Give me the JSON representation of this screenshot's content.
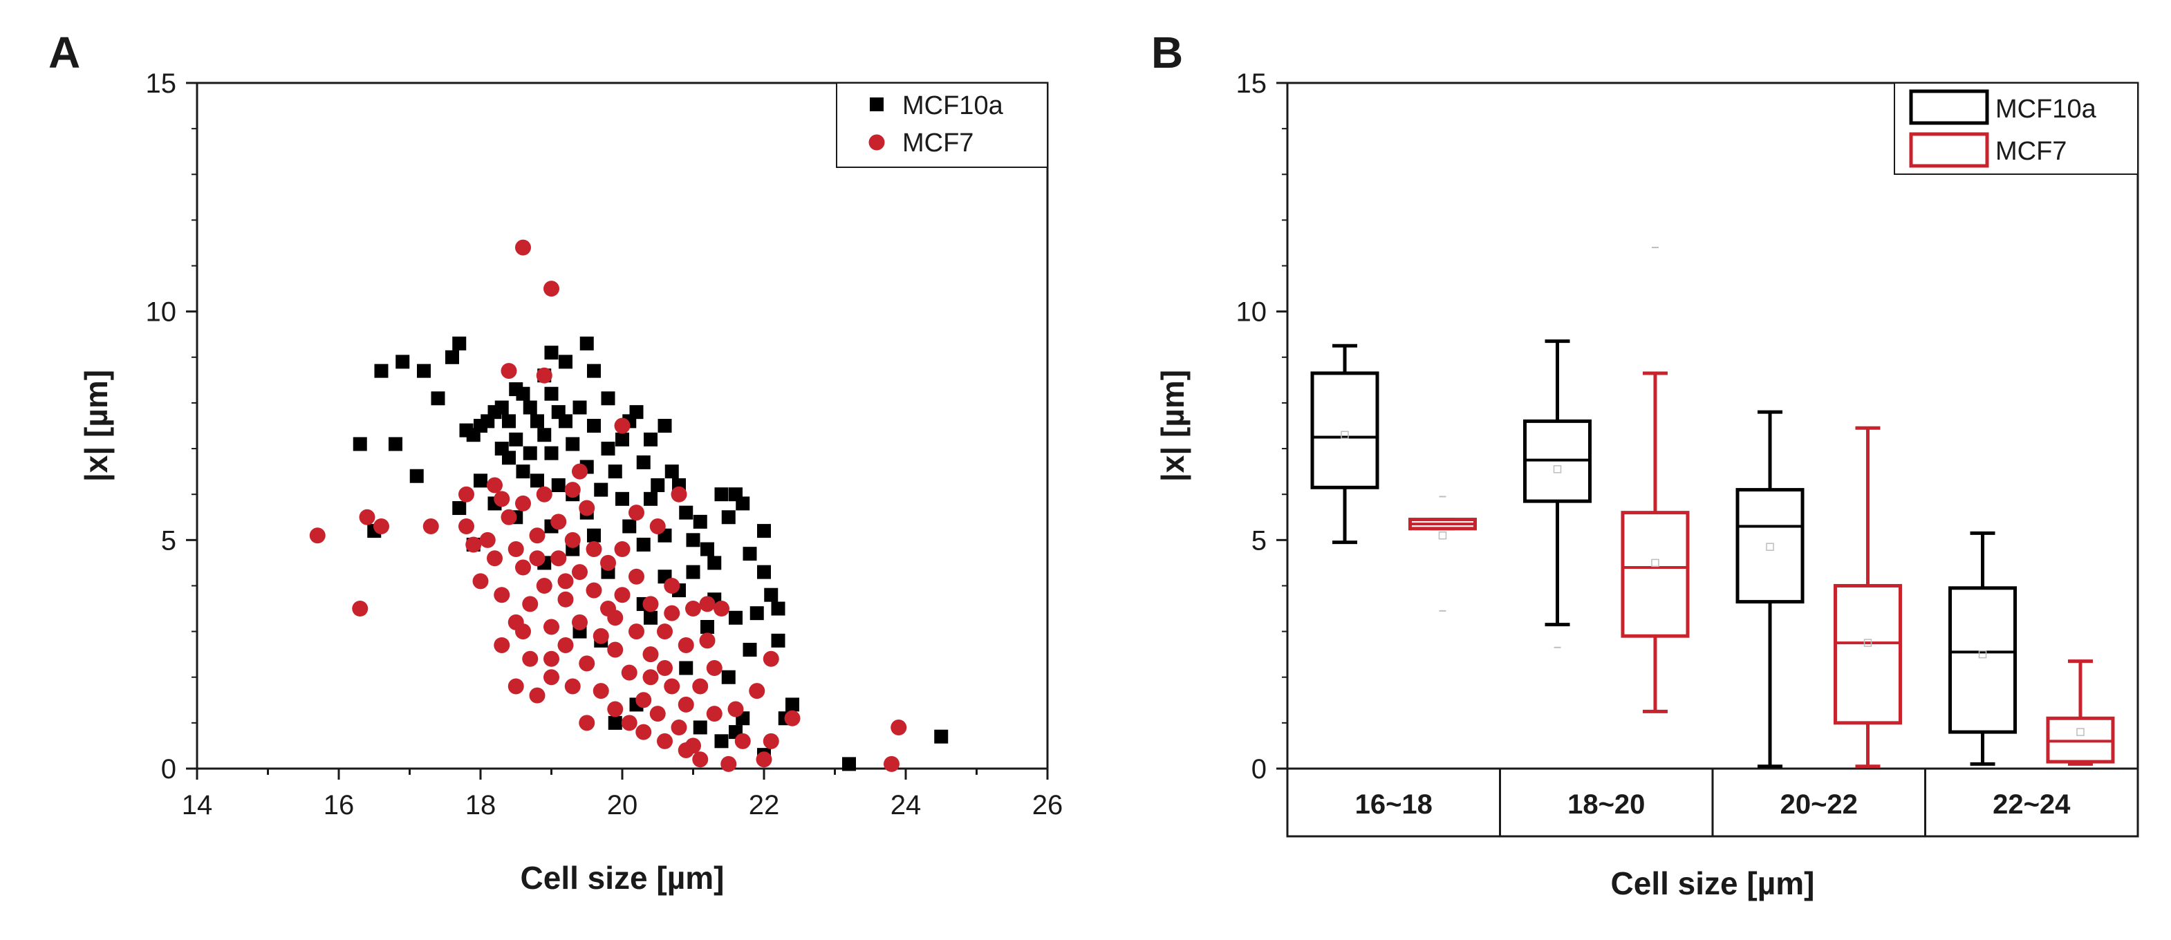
{
  "panels": {
    "a": {
      "letter": "A"
    },
    "b": {
      "letter": "B"
    }
  },
  "chart_data": [
    {
      "type": "scatter",
      "panel": "A",
      "xlabel": "Cell size [µm]",
      "ylabel": "|x| [µm]",
      "xlim": [
        14,
        26
      ],
      "ylim": [
        0,
        15
      ],
      "xticks": [
        "14",
        "16",
        "18",
        "20",
        "22",
        "24",
        "26"
      ],
      "yticks": [
        "0",
        "5",
        "10",
        "15"
      ],
      "legend_position": "top-right",
      "series": [
        {
          "name": "MCF10a",
          "color": "#000000",
          "marker": "square",
          "points": [
            [
              16.3,
              7.1
            ],
            [
              16.5,
              5.2
            ],
            [
              16.6,
              8.7
            ],
            [
              16.8,
              7.1
            ],
            [
              16.9,
              8.9
            ],
            [
              17.1,
              6.4
            ],
            [
              17.2,
              8.7
            ],
            [
              17.4,
              8.1
            ],
            [
              17.6,
              9.0
            ],
            [
              17.7,
              9.3
            ],
            [
              17.8,
              7.4
            ],
            [
              17.9,
              7.3
            ],
            [
              18.0,
              7.5
            ],
            [
              18.1,
              7.6
            ],
            [
              18.2,
              7.8
            ],
            [
              18.3,
              7.9
            ],
            [
              18.3,
              7.0
            ],
            [
              18.4,
              6.8
            ],
            [
              18.4,
              7.6
            ],
            [
              18.5,
              8.3
            ],
            [
              18.5,
              7.2
            ],
            [
              18.6,
              8.2
            ],
            [
              18.6,
              6.5
            ],
            [
              18.7,
              7.9
            ],
            [
              18.7,
              6.9
            ],
            [
              18.8,
              7.6
            ],
            [
              18.8,
              6.3
            ],
            [
              18.9,
              8.6
            ],
            [
              18.9,
              7.3
            ],
            [
              19.0,
              9.1
            ],
            [
              19.0,
              8.2
            ],
            [
              19.0,
              6.9
            ],
            [
              19.1,
              7.8
            ],
            [
              19.1,
              6.2
            ],
            [
              19.2,
              8.9
            ],
            [
              19.2,
              7.6
            ],
            [
              19.3,
              7.1
            ],
            [
              19.3,
              6.0
            ],
            [
              19.4,
              7.9
            ],
            [
              19.5,
              9.3
            ],
            [
              19.5,
              6.6
            ],
            [
              19.6,
              8.7
            ],
            [
              19.6,
              7.5
            ],
            [
              19.7,
              6.1
            ],
            [
              19.8,
              8.1
            ],
            [
              19.8,
              7.0
            ],
            [
              19.9,
              6.5
            ],
            [
              20.0,
              7.2
            ],
            [
              20.0,
              5.9
            ],
            [
              20.1,
              7.6
            ],
            [
              20.1,
              5.3
            ],
            [
              20.2,
              7.8
            ],
            [
              20.3,
              6.7
            ],
            [
              20.4,
              7.2
            ],
            [
              20.4,
              5.9
            ],
            [
              20.5,
              6.2
            ],
            [
              20.6,
              7.5
            ],
            [
              20.6,
              5.1
            ],
            [
              20.7,
              6.5
            ],
            [
              20.8,
              6.2
            ],
            [
              20.9,
              5.6
            ],
            [
              21.0,
              5.0
            ],
            [
              21.0,
              4.3
            ],
            [
              21.1,
              5.4
            ],
            [
              21.2,
              4.8
            ],
            [
              21.3,
              4.5
            ],
            [
              21.3,
              3.7
            ],
            [
              21.4,
              6.0
            ],
            [
              21.5,
              5.5
            ],
            [
              21.6,
              6.0
            ],
            [
              21.7,
              5.8
            ],
            [
              21.8,
              4.7
            ],
            [
              21.9,
              3.4
            ],
            [
              22.0,
              5.2
            ],
            [
              22.0,
              4.3
            ],
            [
              22.1,
              3.8
            ],
            [
              22.2,
              3.5
            ],
            [
              22.2,
              2.8
            ],
            [
              22.3,
              1.1
            ],
            [
              22.4,
              1.4
            ],
            [
              22.0,
              0.3
            ],
            [
              21.6,
              0.8
            ],
            [
              21.4,
              0.6
            ],
            [
              21.1,
              0.9
            ],
            [
              21.7,
              1.1
            ],
            [
              23.2,
              0.1
            ],
            [
              24.5,
              0.7
            ],
            [
              19.7,
              2.8
            ],
            [
              19.4,
              3.0
            ],
            [
              20.3,
              3.6
            ],
            [
              20.6,
              4.2
            ],
            [
              20.9,
              2.2
            ],
            [
              21.6,
              3.3
            ],
            [
              21.8,
              2.6
            ],
            [
              19.9,
              1.0
            ],
            [
              20.2,
              1.4
            ],
            [
              17.9,
              4.9
            ],
            [
              18.2,
              5.8
            ],
            [
              18.5,
              5.5
            ],
            [
              19.0,
              5.3
            ],
            [
              19.3,
              4.8
            ],
            [
              19.5,
              5.6
            ],
            [
              19.8,
              4.3
            ],
            [
              20.3,
              4.9
            ],
            [
              20.8,
              3.9
            ],
            [
              21.2,
              3.1
            ],
            [
              17.7,
              5.7
            ],
            [
              18.0,
              6.3
            ],
            [
              18.9,
              4.5
            ],
            [
              19.6,
              5.1
            ],
            [
              20.4,
              3.3
            ],
            [
              21.5,
              2.0
            ]
          ]
        },
        {
          "name": "MCF7",
          "color": "#c8232c",
          "marker": "circle",
          "points": [
            [
              15.7,
              5.1
            ],
            [
              16.3,
              3.5
            ],
            [
              16.4,
              5.5
            ],
            [
              16.6,
              5.3
            ],
            [
              17.3,
              5.3
            ],
            [
              17.8,
              6.0
            ],
            [
              17.8,
              5.3
            ],
            [
              18.0,
              4.1
            ],
            [
              18.1,
              5.0
            ],
            [
              18.2,
              6.2
            ],
            [
              18.2,
              4.6
            ],
            [
              18.3,
              3.8
            ],
            [
              18.3,
              2.7
            ],
            [
              18.4,
              8.7
            ],
            [
              18.4,
              5.5
            ],
            [
              18.5,
              4.8
            ],
            [
              18.5,
              3.2
            ],
            [
              18.5,
              1.8
            ],
            [
              18.6,
              11.4
            ],
            [
              18.6,
              5.8
            ],
            [
              18.6,
              4.4
            ],
            [
              18.7,
              3.6
            ],
            [
              18.7,
              2.4
            ],
            [
              18.8,
              5.1
            ],
            [
              18.8,
              1.6
            ],
            [
              18.9,
              8.6
            ],
            [
              18.9,
              6.0
            ],
            [
              18.9,
              4.0
            ],
            [
              19.0,
              10.5
            ],
            [
              19.0,
              3.1
            ],
            [
              19.0,
              2.0
            ],
            [
              19.1,
              5.4
            ],
            [
              19.1,
              4.6
            ],
            [
              19.2,
              3.7
            ],
            [
              19.2,
              2.7
            ],
            [
              19.3,
              6.1
            ],
            [
              19.3,
              5.0
            ],
            [
              19.3,
              1.8
            ],
            [
              19.4,
              4.3
            ],
            [
              19.4,
              3.2
            ],
            [
              19.5,
              2.3
            ],
            [
              19.5,
              5.7
            ],
            [
              19.6,
              4.8
            ],
            [
              19.6,
              3.9
            ],
            [
              19.7,
              2.9
            ],
            [
              19.7,
              1.7
            ],
            [
              19.8,
              4.5
            ],
            [
              19.8,
              3.5
            ],
            [
              19.9,
              2.6
            ],
            [
              19.9,
              1.3
            ],
            [
              20.0,
              7.5
            ],
            [
              20.0,
              4.8
            ],
            [
              20.0,
              3.8
            ],
            [
              20.1,
              2.1
            ],
            [
              20.1,
              1.0
            ],
            [
              20.2,
              4.2
            ],
            [
              20.2,
              3.0
            ],
            [
              20.3,
              1.5
            ],
            [
              20.3,
              0.8
            ],
            [
              20.4,
              3.6
            ],
            [
              20.4,
              2.5
            ],
            [
              20.5,
              5.3
            ],
            [
              20.5,
              1.2
            ],
            [
              20.6,
              3.0
            ],
            [
              20.6,
              0.6
            ],
            [
              20.7,
              4.0
            ],
            [
              20.7,
              1.8
            ],
            [
              20.8,
              6.0
            ],
            [
              20.8,
              0.9
            ],
            [
              20.9,
              2.7
            ],
            [
              20.9,
              1.4
            ],
            [
              21.0,
              3.5
            ],
            [
              21.0,
              0.5
            ],
            [
              21.1,
              1.8
            ],
            [
              21.1,
              0.2
            ],
            [
              21.2,
              3.6
            ],
            [
              21.3,
              1.2
            ],
            [
              21.4,
              3.5
            ],
            [
              21.5,
              0.1
            ],
            [
              21.6,
              1.3
            ],
            [
              21.9,
              1.7
            ],
            [
              22.0,
              0.2
            ],
            [
              22.1,
              0.6
            ],
            [
              22.4,
              1.1
            ],
            [
              22.1,
              2.4
            ],
            [
              23.8,
              0.1
            ],
            [
              23.9,
              0.9
            ],
            [
              21.2,
              2.8
            ],
            [
              20.4,
              2.0
            ],
            [
              19.2,
              4.1
            ],
            [
              18.8,
              4.6
            ],
            [
              19.9,
              3.3
            ],
            [
              20.6,
              2.2
            ],
            [
              17.9,
              4.9
            ],
            [
              18.3,
              5.9
            ],
            [
              19.5,
              1.0
            ],
            [
              20.9,
              0.4
            ],
            [
              21.7,
              0.6
            ],
            [
              19.0,
              2.4
            ],
            [
              18.6,
              3.0
            ],
            [
              20.2,
              5.6
            ],
            [
              21.3,
              2.2
            ],
            [
              19.4,
              6.5
            ],
            [
              20.7,
              3.4
            ]
          ]
        }
      ]
    },
    {
      "type": "box",
      "panel": "B",
      "xlabel": "Cell size [µm]",
      "ylabel": "|x| [µm]",
      "ylim": [
        0,
        15
      ],
      "yticks": [
        "0",
        "5",
        "10",
        "15"
      ],
      "categories": [
        "16~18",
        "18~20",
        "20~22",
        "22~24"
      ],
      "legend_position": "top-right",
      "series": [
        {
          "name": "MCF10a",
          "color": "#000000",
          "boxes": [
            {
              "min": 4.95,
              "q1": 6.15,
              "median": 7.25,
              "mean": 7.3,
              "q3": 8.65,
              "max": 9.25,
              "outliers": []
            },
            {
              "min": 3.15,
              "q1": 5.85,
              "median": 6.75,
              "mean": 6.55,
              "q3": 7.6,
              "max": 9.35,
              "outliers": [
                2.65
              ]
            },
            {
              "min": 0.05,
              "q1": 3.65,
              "median": 5.3,
              "mean": 4.85,
              "q3": 6.1,
              "max": 7.8,
              "outliers": []
            },
            {
              "min": 0.1,
              "q1": 0.8,
              "median": 2.55,
              "mean": 2.5,
              "q3": 3.95,
              "max": 5.15,
              "outliers": []
            }
          ]
        },
        {
          "name": "MCF7",
          "color": "#c8232c",
          "boxes": [
            {
              "min": 5.25,
              "q1": 5.25,
              "median": 5.35,
              "mean": 5.1,
              "q3": 5.45,
              "max": 5.45,
              "outliers": [
                5.95,
                3.45
              ]
            },
            {
              "min": 1.25,
              "q1": 2.9,
              "median": 4.4,
              "mean": 4.5,
              "q3": 5.6,
              "max": 8.65,
              "outliers": [
                11.4
              ]
            },
            {
              "min": 0.05,
              "q1": 1.0,
              "median": 2.75,
              "mean": 2.75,
              "q3": 4.0,
              "max": 7.45,
              "outliers": []
            },
            {
              "min": 0.1,
              "q1": 0.15,
              "median": 0.6,
              "mean": 0.8,
              "q3": 1.1,
              "max": 2.35,
              "outliers": []
            }
          ]
        }
      ]
    }
  ]
}
